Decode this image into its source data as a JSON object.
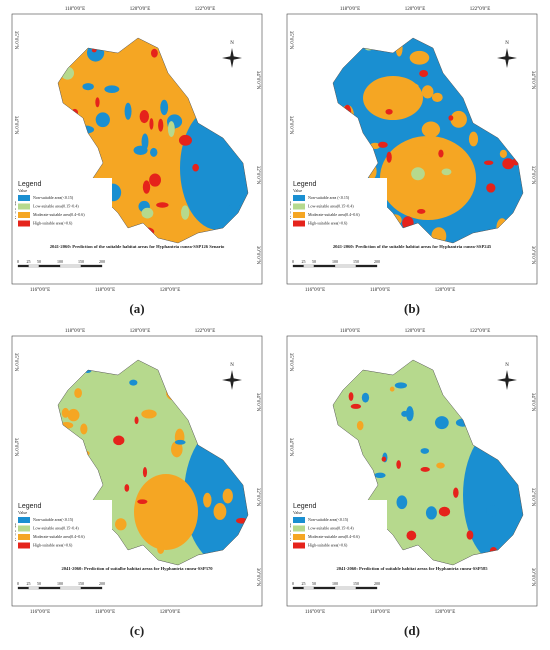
{
  "map_common": {
    "north": "N",
    "legend_title": "Legend",
    "legend_subtitle": "Value",
    "scale_labels": [
      "0",
      "25",
      "50",
      "100",
      "150",
      "200"
    ]
  },
  "panels": [
    {
      "label": "(a)",
      "top_lon": [
        "118°0'0\"E",
        "120°0'0\"E",
        "122°0'0\"E"
      ],
      "bottom_lon": [
        "116°0'0\"E",
        "118°0'0\"E",
        "120°0'0\"E"
      ],
      "left_lat": [
        "35°0'0\"N",
        "34°0'0\"N",
        "32°0'0\"N"
      ],
      "right_lat": [
        "34°0'0\"N",
        "32°0'0\"N",
        "30°0'0\"N"
      ],
      "legend": [
        "Non-suitable area(<0.15)",
        "Low-suitable area(0.15~0.4)",
        "Moderate-suitable area(0.4~0.6)",
        "High-suitable area(>0.6)"
      ],
      "caption": "2041-2060:  Prediction of the suitable habitat areas for Hyphantria cunea-SSP126 Senario"
    },
    {
      "label": "(b)",
      "top_lon": [
        "118°0'0\"E",
        "120°0'0\"E",
        "122°0'0\"E"
      ],
      "bottom_lon": [
        "116°0'0\"E",
        "118°0'0\"E",
        "120°0'0\"E"
      ],
      "left_lat": [
        "35°0'0\"N",
        "34°0'0\"N",
        "32°0'0\"N"
      ],
      "right_lat": [
        "34°0'0\"N",
        "32°0'0\"N",
        "30°0'0\"N"
      ],
      "legend": [
        "Non-suitable area (<0.15)",
        "Low-suitable area(0.15~0.4)",
        "Moderate-suitable area(0.4~0.6)",
        "High-suitable area(>0.6)"
      ],
      "caption": "2041-2060: Prediction of the suitable habitat areas for Hyphantria cunea-SSP245"
    },
    {
      "label": "(c)",
      "top_lon": [
        "118°0'0\"E",
        "120°0'0\"E",
        "122°0'0\"E"
      ],
      "bottom_lon": [
        "116°0'0\"E",
        "118°0'0\"E",
        "120°0'0\"E"
      ],
      "left_lat": [
        "35°0'0\"N",
        "34°0'0\"N",
        "32°0'0\"N"
      ],
      "right_lat": [
        "34°0'0\"N",
        "32°0'0\"N",
        "30°0'0\"N"
      ],
      "legend": [
        "Non-suitable area(<0.15)",
        "Low-suitable area(0.15~0.4)",
        "Moderate-suitable area(0.4~0.6)",
        "High-suitable area(>0.6)"
      ],
      "caption": "2041-2060: Prediction of suitalbe habitat areas for Hyphantria cunea-SSP370"
    },
    {
      "label": "(d)",
      "top_lon": [
        "118°0'0\"E",
        "120°0'0\"E",
        "122°0'0\"E"
      ],
      "bottom_lon": [
        "116°0'0\"E",
        "118°0'0\"E",
        "120°0'0\"E"
      ],
      "left_lat": [
        "35°0'0\"N",
        "34°0'0\"N",
        "32°0'0\"N"
      ],
      "right_lat": [
        "34°0'0\"N",
        "32°0'0\"N",
        "30°0'0\"N"
      ],
      "legend": [
        "Non-suitable area(<0.15)",
        "Low-suitable area(0.15~0.4)",
        "Moderate-suitable area(0.4~0.6)",
        "High-suitable area(>0.6)"
      ],
      "caption": "2041-2060: Prediction of suitable habitat areas for Hyphantria cunea-SSP585"
    }
  ]
}
